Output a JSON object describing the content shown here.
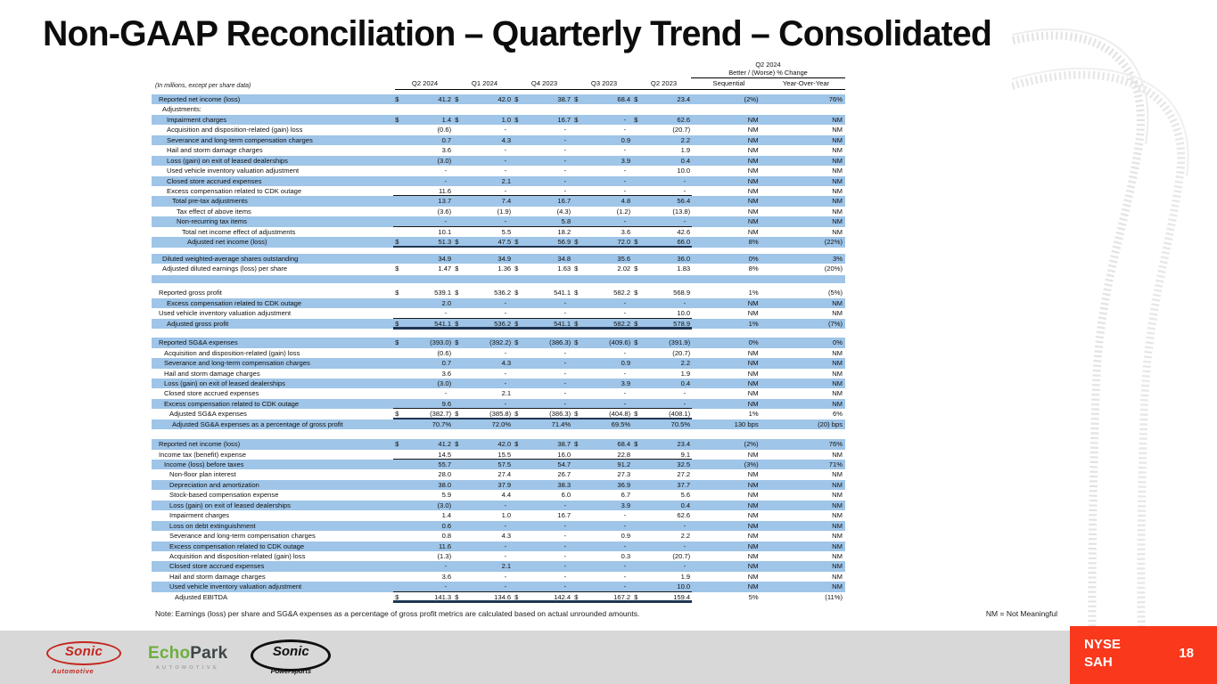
{
  "title": "Non-GAAP Reconciliation – Quarterly Trend – Consolidated",
  "colors": {
    "row_highlight": "#9FC5E8",
    "heavy_rule": "#1F3652",
    "badge_red": "#F9381C",
    "brand_red": "#C4251D",
    "echopark_green": "#6FAE3E",
    "footer_gray": "#D8D8D8"
  },
  "table": {
    "units_note": "(In millions, except per share data)",
    "columns": [
      "Q2 2024",
      "Q1 2024",
      "Q4 2023",
      "Q3 2023",
      "Q2 2023"
    ],
    "change_header": {
      "line1": "Q2 2024",
      "line2": "Better / (Worse) % Change"
    },
    "change_columns": [
      "Sequential",
      "Year-Over-Year"
    ],
    "sections": [
      {
        "gap": 0,
        "rows": [
          {
            "label": "Reported net income (loss)",
            "ind": 8,
            "d": 1,
            "v": [
              "41.2",
              "42.0",
              "38.7",
              "68.4",
              "23.4"
            ],
            "s": "(2%)",
            "y": "76%",
            "sh": 1
          },
          {
            "label": "Adjustments:",
            "ind": 12,
            "v": [
              "",
              "",
              "",
              "",
              ""
            ],
            "s": "",
            "y": ""
          },
          {
            "label": "Impairment charges",
            "ind": 17,
            "d": 1,
            "v": [
              "1.4",
              "1.0",
              "16.7",
              "-",
              "62.6"
            ],
            "s": "NM",
            "y": "NM",
            "sh": 1
          },
          {
            "label": "Acquisition and disposition-related (gain) loss",
            "ind": 17,
            "v": [
              "(0.6)",
              "-",
              "-",
              "-",
              "(20.7)"
            ],
            "s": "NM",
            "y": "NM"
          },
          {
            "label": "Severance and long-term compensation charges",
            "ind": 17,
            "v": [
              "0.7",
              "4.3",
              "-",
              "0.9",
              "2.2"
            ],
            "s": "NM",
            "y": "NM",
            "sh": 1
          },
          {
            "label": "Hail and storm damage charges",
            "ind": 17,
            "v": [
              "3.6",
              "-",
              "-",
              "-",
              "1.9"
            ],
            "s": "NM",
            "y": "NM"
          },
          {
            "label": "Loss (gain) on exit of leased dealerships",
            "ind": 17,
            "v": [
              "(3.0)",
              "-",
              "-",
              "3.9",
              "0.4"
            ],
            "s": "NM",
            "y": "NM",
            "sh": 1
          },
          {
            "label": "Used vehicle inventory valuation adjustment",
            "ind": 17,
            "v": [
              "-",
              "-",
              "-",
              "-",
              "10.0"
            ],
            "s": "NM",
            "y": "NM"
          },
          {
            "label": "Closed store accrued expenses",
            "ind": 17,
            "v": [
              "-",
              "2.1",
              "-",
              "-",
              "-"
            ],
            "s": "NM",
            "y": "NM",
            "sh": 1
          },
          {
            "label": "Excess compensation related to CDK outage",
            "ind": 17,
            "v": [
              "11.6",
              "-",
              "-",
              "-",
              "-"
            ],
            "s": "NM",
            "y": "NM",
            "ul": 1
          },
          {
            "label": "Total pre-tax adjustments",
            "ind": 23,
            "v": [
              "13.7",
              "7.4",
              "16.7",
              "4.8",
              "56.4"
            ],
            "s": "NM",
            "y": "NM",
            "sh": 1
          },
          {
            "label": "Tax effect of above items",
            "ind": 28,
            "v": [
              "(3.6)",
              "(1.9)",
              "(4.3)",
              "(1.2)",
              "(13.8)"
            ],
            "s": "NM",
            "y": "NM"
          },
          {
            "label": "Non-recurring tax items",
            "ind": 28,
            "v": [
              "-",
              "-",
              "5.8",
              "-",
              "-"
            ],
            "s": "NM",
            "y": "NM",
            "sh": 1,
            "ul": 1
          },
          {
            "label": "Total net income effect of adjustments",
            "ind": 34,
            "v": [
              "10.1",
              "5.5",
              "18.2",
              "3.6",
              "42.6"
            ],
            "s": "NM",
            "y": "NM"
          },
          {
            "label": "Adjusted net income (loss)",
            "ind": 40,
            "d": 1,
            "v": [
              "51.3",
              "47.5",
              "56.9",
              "72.0",
              "66.0"
            ],
            "s": "8%",
            "y": "(22%)",
            "sh": 1,
            "hl": 1
          }
        ]
      },
      {
        "gap": 7,
        "rows": [
          {
            "label": "Diluted weighted-average shares outstanding",
            "ind": 12,
            "v": [
              "34.9",
              "34.9",
              "34.8",
              "35.6",
              "36.0"
            ],
            "s": "0%",
            "y": "3%",
            "sh": 1
          },
          {
            "label": "Adjusted diluted earnings (loss) per share",
            "ind": 12,
            "d": 1,
            "v": [
              "1.47",
              "1.36",
              "1.63",
              "2.02",
              "1.83"
            ],
            "s": "8%",
            "y": "(20%)"
          },
          {
            "blank": 1,
            "sh": 1,
            "mt": 2
          }
        ]
      },
      {
        "gap": 5,
        "rows": [
          {
            "label": "Reported gross profit",
            "ind": 8,
            "d": 1,
            "v": [
              "539.1",
              "536.2",
              "541.1",
              "582.2",
              "568.9"
            ],
            "s": "1%",
            "y": "(5%)"
          },
          {
            "label": "Excess compensation related to CDK outage",
            "ind": 17,
            "v": [
              "2.0",
              "-",
              "-",
              "-",
              "-"
            ],
            "s": "NM",
            "y": "NM",
            "sh": 1
          },
          {
            "label": "Used vehicle inventory valuation adjustment",
            "ind": 8,
            "v": [
              "-",
              "-",
              "-",
              "-",
              "10.0"
            ],
            "s": "NM",
            "y": "NM",
            "ul": 1
          },
          {
            "label": "Adjusted gross profit",
            "ind": 17,
            "d": 1,
            "v": [
              "541.1",
              "536.2",
              "541.1",
              "582.2",
              "578.9"
            ],
            "s": "1%",
            "y": "(7%)",
            "sh": 1,
            "hl": 1
          }
        ]
      },
      {
        "gap": 10,
        "rows": [
          {
            "label": "Reported SG&A expenses",
            "ind": 8,
            "d": 1,
            "v": [
              "(393.0)",
              "(392.2)",
              "(386.3)",
              "(409.6)",
              "(391.9)"
            ],
            "s": "0%",
            "y": "0%",
            "sh": 1
          },
          {
            "label": "Acquisition and disposition-related (gain) loss",
            "ind": 14,
            "v": [
              "(0.6)",
              "-",
              "-",
              "-",
              "(20.7)"
            ],
            "s": "NM",
            "y": "NM"
          },
          {
            "label": "Severance and long-term compensation charges",
            "ind": 14,
            "v": [
              "0.7",
              "4.3",
              "-",
              "0.9",
              "2.2"
            ],
            "s": "NM",
            "y": "NM",
            "sh": 1
          },
          {
            "label": "Hail and storm damage charges",
            "ind": 14,
            "v": [
              "3.6",
              "-",
              "-",
              "-",
              "1.9"
            ],
            "s": "NM",
            "y": "NM"
          },
          {
            "label": "Loss (gain) on exit of leased dealerships",
            "ind": 14,
            "v": [
              "(3.0)",
              "-",
              "-",
              "3.9",
              "0.4"
            ],
            "s": "NM",
            "y": "NM",
            "sh": 1
          },
          {
            "label": "Closed store accrued expenses",
            "ind": 14,
            "v": [
              "-",
              "2.1",
              "-",
              "-",
              "-"
            ],
            "s": "NM",
            "y": "NM"
          },
          {
            "label": "Excess compensation related to CDK outage",
            "ind": 14,
            "v": [
              "9.6",
              "-",
              "-",
              "-",
              "-"
            ],
            "s": "NM",
            "y": "NM",
            "sh": 1,
            "ul": 1
          },
          {
            "label": "Adjusted SG&A expenses",
            "ind": 20,
            "d": 1,
            "v": [
              "(382.7)",
              "(385.8)",
              "(386.3)",
              "(404.8)",
              "(408.1)"
            ],
            "s": "1%",
            "y": "6%",
            "hl": 1
          },
          {
            "label": "Adjusted SG&A expenses as a percentage of gross profit",
            "ind": 23,
            "v": [
              "70.7%",
              "72.0%",
              "71.4%",
              "69.5%",
              "70.5%"
            ],
            "s": "130 bps",
            "y": "(20) bps",
            "sh": 1
          }
        ]
      },
      {
        "gap": 11,
        "rows": [
          {
            "label": "Reported net income (loss)",
            "ind": 8,
            "d": 1,
            "v": [
              "41.2",
              "42.0",
              "38.7",
              "68.4",
              "23.4"
            ],
            "s": "(2%)",
            "y": "76%",
            "sh": 1
          },
          {
            "label": "Income tax (benefit) expense",
            "ind": 8,
            "v": [
              "14.5",
              "15.5",
              "16.0",
              "22.8",
              "9.1"
            ],
            "s": "NM",
            "y": "NM",
            "ul": 1
          },
          {
            "label": "Income (loss) before taxes",
            "ind": 14,
            "v": [
              "55.7",
              "57.5",
              "54.7",
              "91.2",
              "32.5"
            ],
            "s": "(3%)",
            "y": "71%",
            "sh": 1
          },
          {
            "label": "Non-floor plan interest",
            "ind": 20,
            "v": [
              "28.0",
              "27.4",
              "26.7",
              "27.3",
              "27.2"
            ],
            "s": "NM",
            "y": "NM"
          },
          {
            "label": "Depreciation and amortization",
            "ind": 20,
            "v": [
              "38.0",
              "37.9",
              "38.3",
              "36.9",
              "37.7"
            ],
            "s": "NM",
            "y": "NM",
            "sh": 1
          },
          {
            "label": "Stock-based compensation expense",
            "ind": 20,
            "v": [
              "5.9",
              "4.4",
              "6.0",
              "6.7",
              "5.6"
            ],
            "s": "NM",
            "y": "NM"
          },
          {
            "label": "Loss (gain) on exit of leased dealerships",
            "ind": 20,
            "v": [
              "(3.0)",
              "-",
              "-",
              "3.9",
              "0.4"
            ],
            "s": "NM",
            "y": "NM",
            "sh": 1
          },
          {
            "label": "Impairment charges",
            "ind": 20,
            "v": [
              "1.4",
              "1.0",
              "16.7",
              "-",
              "62.6"
            ],
            "s": "NM",
            "y": "NM"
          },
          {
            "label": "Loss on debt extinguishment",
            "ind": 20,
            "v": [
              "0.6",
              "-",
              "-",
              "-",
              "-"
            ],
            "s": "NM",
            "y": "NM",
            "sh": 1
          },
          {
            "label": "Severance and long-term compensation charges",
            "ind": 20,
            "v": [
              "0.8",
              "4.3",
              "-",
              "0.9",
              "2.2"
            ],
            "s": "NM",
            "y": "NM"
          },
          {
            "label": "Excess compensation related to CDK outage",
            "ind": 20,
            "v": [
              "11.6",
              "-",
              "-",
              "-",
              "-"
            ],
            "s": "NM",
            "y": "NM",
            "sh": 1
          },
          {
            "label": "Acquisition and disposition-related (gain) loss",
            "ind": 20,
            "v": [
              "(1.3)",
              "-",
              "-",
              "0.3",
              "(20.7)"
            ],
            "s": "NM",
            "y": "NM"
          },
          {
            "label": "Closed store accrued expenses",
            "ind": 20,
            "v": [
              "-",
              "2.1",
              "-",
              "-",
              "-"
            ],
            "s": "NM",
            "y": "NM",
            "sh": 1
          },
          {
            "label": "Hail and storm damage charges",
            "ind": 20,
            "v": [
              "3.6",
              "-",
              "-",
              "-",
              "1.9"
            ],
            "s": "NM",
            "y": "NM"
          },
          {
            "label": "Used vehicle inventory valuation adjustment",
            "ind": 20,
            "v": [
              "-",
              "-",
              "-",
              "-",
              "10.0"
            ],
            "s": "NM",
            "y": "NM",
            "sh": 1,
            "ul": 1
          },
          {
            "label": "Adjusted EBITDA",
            "ind": 26,
            "d": 1,
            "v": [
              "141.3",
              "134.6",
              "142.4",
              "167.2",
              "159.4"
            ],
            "s": "5%",
            "y": "(11%)",
            "hl": 1
          }
        ]
      }
    ]
  },
  "note": "Note: Earnings (loss) per share and SG&A expenses as a percentage of gross profit metrics are calculated based on actual unrounded amounts.",
  "nm_note": "NM = Not Meaningful",
  "footer": {
    "sonic_automotive": {
      "name": "Sonic",
      "sub": "Automotive"
    },
    "echopark": {
      "name_green": "Ech",
      "name_o": "o",
      "name_dark": "Park",
      "sub": "AUTOMOTIVE"
    },
    "sonic_powersports": {
      "name": "Sonic",
      "sub": "Powersports"
    },
    "ticker_line1": "NYSE",
    "ticker_line2": "SAH",
    "page_number": "18"
  }
}
